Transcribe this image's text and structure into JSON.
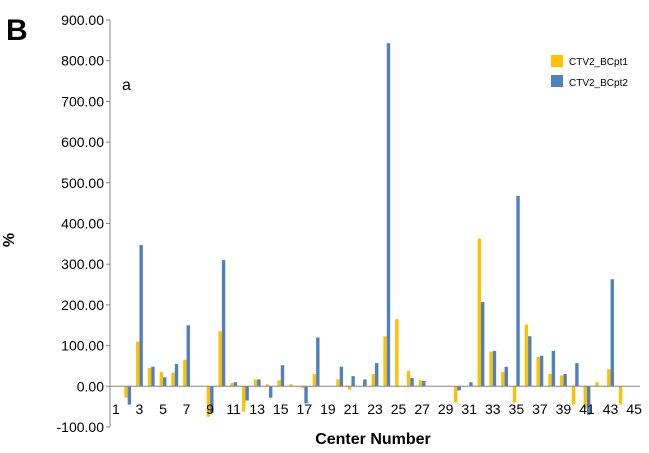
{
  "chart_data": {
    "type": "bar",
    "panel_label": "B",
    "annotation": "a",
    "xlabel": "Center Number",
    "ylabel": "%",
    "ylim": [
      -100,
      900
    ],
    "yticks": [
      "-100.00",
      "0.00",
      "100.00",
      "200.00",
      "300.00",
      "400.00",
      "500.00",
      "600.00",
      "700.00",
      "800.00",
      "900.00"
    ],
    "xtick_labels": [
      "1",
      "3",
      "5",
      "7",
      "9",
      "11",
      "13",
      "15",
      "17",
      "19",
      "21",
      "23",
      "25",
      "27",
      "29",
      "31",
      "33",
      "35",
      "37",
      "39",
      "41",
      "43",
      "45"
    ],
    "categories": [
      1,
      2,
      3,
      4,
      5,
      6,
      7,
      8,
      9,
      10,
      11,
      12,
      13,
      14,
      15,
      16,
      17,
      18,
      19,
      20,
      21,
      22,
      23,
      24,
      25,
      26,
      27,
      28,
      29,
      30,
      31,
      32,
      33,
      34,
      35,
      36,
      37,
      38,
      39,
      40,
      41,
      42,
      43,
      44,
      45
    ],
    "grid": false,
    "legend_position": "top-right",
    "series": [
      {
        "name": "CTV2_BCpt1",
        "color": "#FFC000",
        "values": [
          0,
          -28,
          110,
          45,
          35,
          33,
          65,
          0,
          -75,
          135,
          8,
          -62,
          17,
          5,
          15,
          5,
          -5,
          30,
          0,
          17,
          -8,
          0,
          30,
          123,
          165,
          38,
          15,
          0,
          0,
          -40,
          0,
          363,
          85,
          35,
          -40,
          152,
          72,
          30,
          27,
          -45,
          -55,
          10,
          42,
          -45,
          0
        ]
      },
      {
        "name": "CTV2_BCpt2",
        "color": "#4F81BD",
        "values": [
          0,
          -45,
          347,
          48,
          22,
          55,
          150,
          0,
          -65,
          310,
          10,
          -35,
          17,
          -28,
          52,
          0,
          -42,
          120,
          0,
          48,
          25,
          17,
          57,
          843,
          0,
          20,
          13,
          0,
          0,
          -10,
          10,
          207,
          87,
          48,
          468,
          123,
          75,
          87,
          30,
          57,
          -70,
          0,
          263,
          0,
          0
        ]
      }
    ]
  }
}
